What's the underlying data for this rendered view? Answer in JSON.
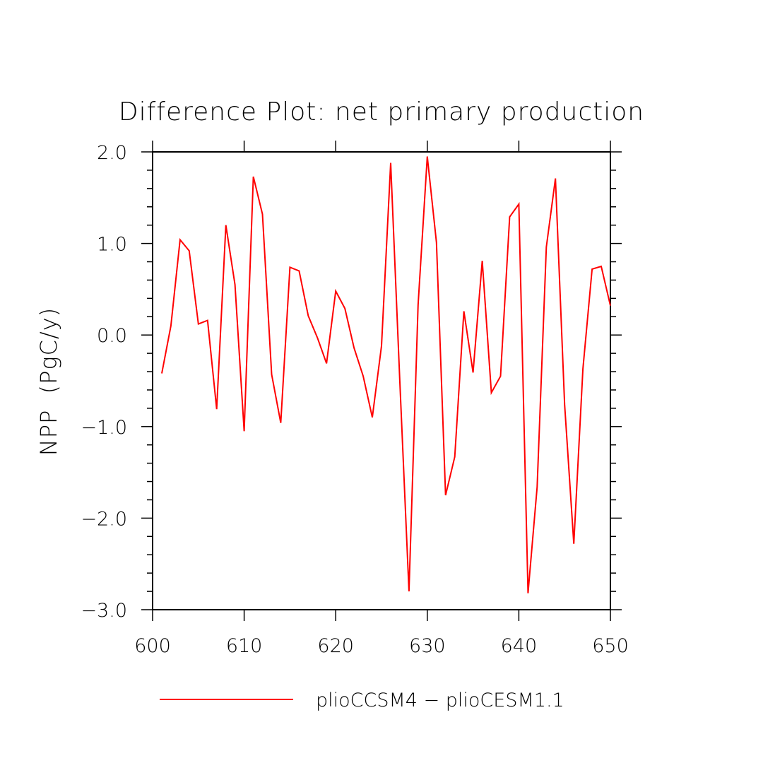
{
  "chart_data": {
    "type": "line",
    "title": "Difference Plot: net primary production",
    "xlabel": "",
    "ylabel": "NPP  (PgC/y)",
    "xlim": [
      600,
      650
    ],
    "ylim": [
      -3.0,
      2.0
    ],
    "x_ticks": [
      600,
      610,
      620,
      630,
      640,
      650
    ],
    "x_tick_labels": [
      "600",
      "610",
      "620",
      "630",
      "640",
      "650"
    ],
    "y_ticks": [
      -3.0,
      -2.0,
      -1.0,
      0.0,
      1.0,
      2.0
    ],
    "y_tick_labels": [
      "−3.0",
      "−2.0",
      "−1.0",
      "0.0",
      "1.0",
      "2.0"
    ],
    "grid": false,
    "legend_position": "bottom",
    "series": [
      {
        "name": "plioCCSM4 − plioCESM1.1",
        "color": "#ff0000",
        "x": [
          601,
          602,
          603,
          604,
          605,
          606,
          607,
          608,
          609,
          610,
          611,
          612,
          613,
          614,
          615,
          616,
          617,
          618,
          619,
          620,
          621,
          622,
          623,
          624,
          625,
          626,
          627,
          628,
          629,
          630,
          631,
          632,
          633,
          634,
          635,
          636,
          637,
          638,
          639,
          640,
          641,
          642,
          643,
          644,
          645,
          646,
          647,
          648,
          649,
          650
        ],
        "y": [
          -0.42,
          0.1,
          1.04,
          0.92,
          0.12,
          0.16,
          -0.81,
          1.2,
          0.55,
          -1.05,
          1.73,
          1.32,
          -0.43,
          -0.96,
          0.74,
          0.7,
          0.21,
          -0.03,
          -0.31,
          0.48,
          0.29,
          -0.14,
          -0.45,
          -0.9,
          -0.12,
          1.88,
          -0.5,
          -2.8,
          0.33,
          1.95,
          1.01,
          -1.75,
          -1.33,
          0.26,
          -0.41,
          0.81,
          -0.63,
          -0.45,
          1.29,
          1.43,
          -2.82,
          -1.66,
          0.96,
          1.71,
          -0.76,
          -2.28,
          -0.37,
          0.72,
          0.75,
          0.32
        ]
      }
    ]
  }
}
